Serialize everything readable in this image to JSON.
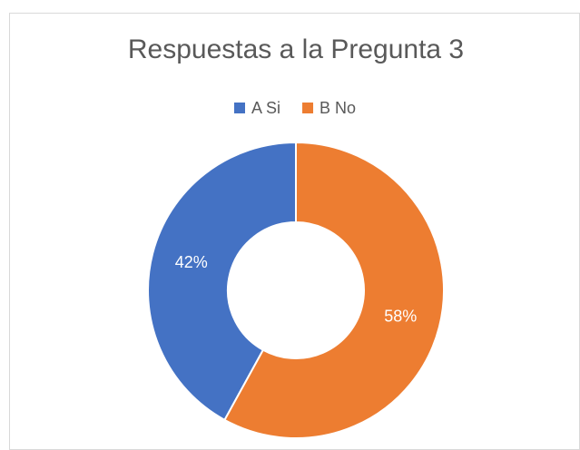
{
  "chart_data": {
    "type": "donut",
    "title": "Respuestas a la Pregunta 3",
    "categories": [
      "A Si",
      "B No"
    ],
    "values": [
      42,
      58
    ],
    "value_labels": [
      "42%",
      "58%"
    ],
    "colors": [
      "#4472c4",
      "#ed7d31"
    ],
    "legend": "top"
  }
}
